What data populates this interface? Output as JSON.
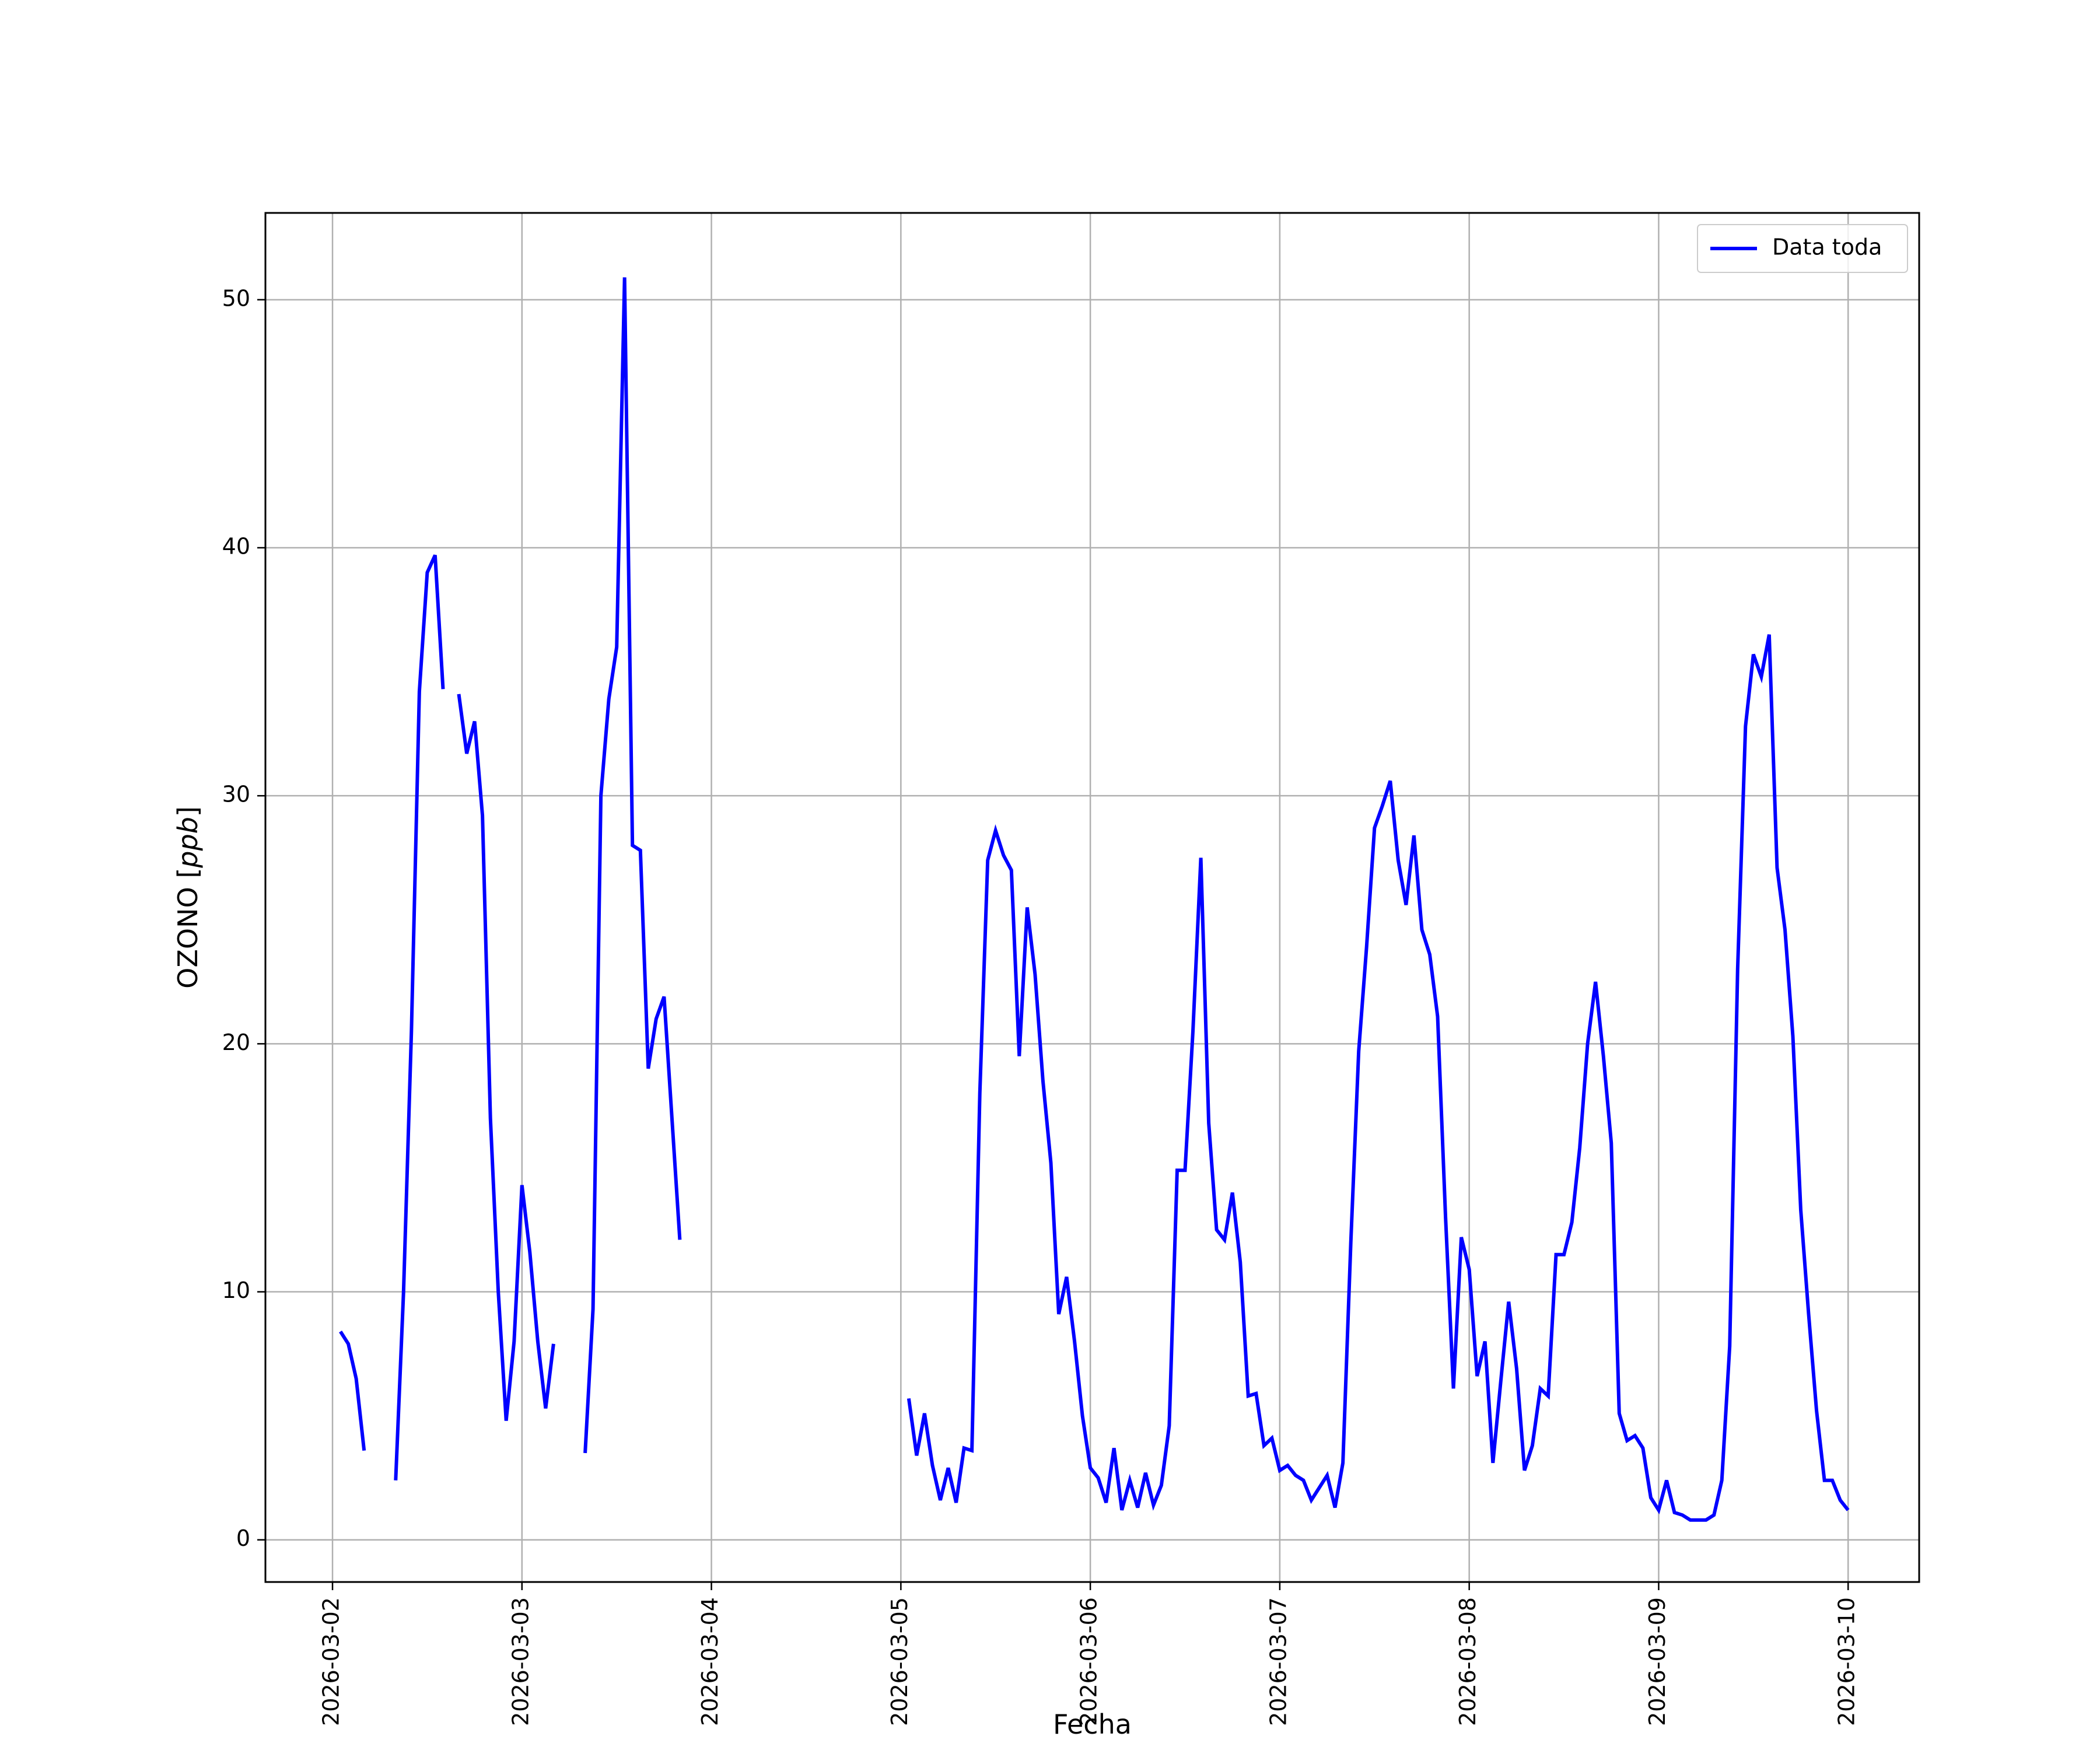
{
  "chart_data": {
    "type": "line",
    "xlabel": "Fecha",
    "ylabel": "OZONO [ppb]",
    "ylabel_parts": {
      "prefix": "OZONO [",
      "unit": "ppb",
      "suffix": "]"
    },
    "xlim": [
      "2026-03-01 15:30",
      "2026-03-10 09:00"
    ],
    "ylim": [
      -1.7,
      53.5
    ],
    "x_ticks": [
      "2026-03-02",
      "2026-03-03",
      "2026-03-04",
      "2026-03-05",
      "2026-03-06",
      "2026-03-07",
      "2026-03-08",
      "2026-03-09",
      "2026-03-10"
    ],
    "y_ticks": [
      0,
      10,
      20,
      30,
      40,
      50
    ],
    "grid": true,
    "legend": {
      "position": "top-right",
      "entries": [
        "Data toda"
      ]
    },
    "colors": {
      "series": "#0000ff",
      "grid": "#b0b0b0",
      "frame": "#000000"
    },
    "series": [
      {
        "name": "Data toda",
        "segments": [
          [
            [
              "2026-03-02 01:00",
              8.4
            ],
            [
              "2026-03-02 02:00",
              7.9
            ],
            [
              "2026-03-02 03:00",
              6.5
            ],
            [
              "2026-03-02 04:00",
              3.6
            ]
          ],
          [
            [
              "2026-03-02 08:00",
              2.4
            ],
            [
              "2026-03-02 09:00",
              10.0
            ],
            [
              "2026-03-02 10:00",
              20.5
            ],
            [
              "2026-03-02 11:00",
              34.2
            ],
            [
              "2026-03-02 12:00",
              39.0
            ],
            [
              "2026-03-02 13:00",
              39.7
            ],
            [
              "2026-03-02 14:00",
              34.3
            ]
          ],
          [
            [
              "2026-03-02 16:00",
              34.1
            ],
            [
              "2026-03-02 17:00",
              31.7
            ],
            [
              "2026-03-02 18:00",
              33.0
            ],
            [
              "2026-03-02 19:00",
              29.2
            ],
            [
              "2026-03-02 20:00",
              17.0
            ],
            [
              "2026-03-02 21:00",
              10.0
            ],
            [
              "2026-03-02 22:00",
              4.8
            ],
            [
              "2026-03-02 23:00",
              8.0
            ],
            [
              "2026-03-03 00:00",
              14.3
            ],
            [
              "2026-03-03 01:00",
              11.6
            ],
            [
              "2026-03-03 02:00",
              8.0
            ],
            [
              "2026-03-03 03:00",
              5.3
            ],
            [
              "2026-03-03 04:00",
              7.9
            ]
          ],
          [
            [
              "2026-03-03 08:00",
              3.5
            ],
            [
              "2026-03-03 09:00",
              9.3
            ],
            [
              "2026-03-03 10:00",
              30.0
            ],
            [
              "2026-03-03 11:00",
              33.9
            ],
            [
              "2026-03-03 12:00",
              36.0
            ],
            [
              "2026-03-03 13:00",
              50.9
            ],
            [
              "2026-03-03 14:00",
              28.0
            ],
            [
              "2026-03-03 15:00",
              27.8
            ],
            [
              "2026-03-03 16:00",
              19.0
            ],
            [
              "2026-03-03 17:00",
              21.0
            ],
            [
              "2026-03-03 18:00",
              21.9
            ],
            [
              "2026-03-03 19:00",
              17.0
            ],
            [
              "2026-03-03 20:00",
              12.1
            ]
          ],
          [
            [
              "2026-03-05 01:00",
              5.7
            ],
            [
              "2026-03-05 02:00",
              3.4
            ],
            [
              "2026-03-05 03:00",
              5.1
            ],
            [
              "2026-03-05 04:00",
              3.0
            ],
            [
              "2026-03-05 05:00",
              1.6
            ],
            [
              "2026-03-05 06:00",
              2.9
            ],
            [
              "2026-03-05 07:00",
              1.5
            ],
            [
              "2026-03-05 08:00",
              3.7
            ],
            [
              "2026-03-05 09:00",
              3.6
            ],
            [
              "2026-03-05 10:00",
              18.0
            ],
            [
              "2026-03-05 11:00",
              27.4
            ],
            [
              "2026-03-05 12:00",
              28.6
            ],
            [
              "2026-03-05 13:00",
              27.6
            ],
            [
              "2026-03-05 14:00",
              27.0
            ],
            [
              "2026-03-05 15:00",
              19.5
            ],
            [
              "2026-03-05 16:00",
              25.5
            ],
            [
              "2026-03-05 17:00",
              22.8
            ],
            [
              "2026-03-05 18:00",
              18.5
            ],
            [
              "2026-03-05 19:00",
              15.2
            ],
            [
              "2026-03-05 20:00",
              9.1
            ],
            [
              "2026-03-05 21:00",
              10.6
            ],
            [
              "2026-03-05 22:00",
              8.0
            ],
            [
              "2026-03-05 23:00",
              5.0
            ],
            [
              "2026-03-06 00:00",
              2.9
            ],
            [
              "2026-03-06 01:00",
              2.5
            ],
            [
              "2026-03-06 02:00",
              1.5
            ],
            [
              "2026-03-06 03:00",
              3.7
            ],
            [
              "2026-03-06 04:00",
              1.2
            ],
            [
              "2026-03-06 05:00",
              2.4
            ],
            [
              "2026-03-06 06:00",
              1.3
            ],
            [
              "2026-03-06 07:00",
              2.7
            ],
            [
              "2026-03-06 08:00",
              1.4
            ],
            [
              "2026-03-06 09:00",
              2.2
            ],
            [
              "2026-03-06 10:00",
              4.6
            ],
            [
              "2026-03-06 11:00",
              14.9
            ],
            [
              "2026-03-06 12:00",
              14.9
            ],
            [
              "2026-03-06 13:00",
              20.5
            ],
            [
              "2026-03-06 14:00",
              27.5
            ],
            [
              "2026-03-06 15:00",
              16.8
            ],
            [
              "2026-03-06 16:00",
              12.5
            ],
            [
              "2026-03-06 17:00",
              12.1
            ],
            [
              "2026-03-06 18:00",
              14.0
            ],
            [
              "2026-03-06 19:00",
              11.2
            ],
            [
              "2026-03-06 20:00",
              5.8
            ],
            [
              "2026-03-06 21:00",
              5.9
            ],
            [
              "2026-03-06 22:00",
              3.8
            ],
            [
              "2026-03-06 23:00",
              4.1
            ],
            [
              "2026-03-07 00:00",
              2.8
            ],
            [
              "2026-03-07 01:00",
              3.0
            ],
            [
              "2026-03-07 02:00",
              2.6
            ],
            [
              "2026-03-07 03:00",
              2.4
            ],
            [
              "2026-03-07 04:00",
              1.6
            ],
            [
              "2026-03-07 05:00",
              2.1
            ],
            [
              "2026-03-07 06:00",
              2.6
            ],
            [
              "2026-03-07 07:00",
              1.3
            ],
            [
              "2026-03-07 08:00",
              3.1
            ],
            [
              "2026-03-07 09:00",
              12.0
            ],
            [
              "2026-03-07 10:00",
              19.7
            ],
            [
              "2026-03-07 11:00",
              23.9
            ],
            [
              "2026-03-07 12:00",
              28.7
            ],
            [
              "2026-03-07 13:00",
              29.6
            ],
            [
              "2026-03-07 14:00",
              30.6
            ],
            [
              "2026-03-07 15:00",
              27.4
            ],
            [
              "2026-03-07 16:00",
              25.6
            ],
            [
              "2026-03-07 17:00",
              28.4
            ],
            [
              "2026-03-07 18:00",
              24.6
            ],
            [
              "2026-03-07 19:00",
              23.6
            ],
            [
              "2026-03-07 20:00",
              21.1
            ],
            [
              "2026-03-07 21:00",
              13.0
            ],
            [
              "2026-03-07 22:00",
              6.1
            ],
            [
              "2026-03-07 23:00",
              12.2
            ],
            [
              "2026-03-08 00:00",
              10.9
            ],
            [
              "2026-03-08 01:00",
              6.6
            ],
            [
              "2026-03-08 02:00",
              8.0
            ],
            [
              "2026-03-08 03:00",
              3.1
            ],
            [
              "2026-03-08 04:00",
              6.4
            ],
            [
              "2026-03-08 05:00",
              9.6
            ],
            [
              "2026-03-08 06:00",
              6.9
            ],
            [
              "2026-03-08 07:00",
              2.8
            ],
            [
              "2026-03-08 08:00",
              3.8
            ],
            [
              "2026-03-08 09:00",
              6.1
            ],
            [
              "2026-03-08 10:00",
              5.8
            ],
            [
              "2026-03-08 11:00",
              11.5
            ],
            [
              "2026-03-08 12:00",
              11.5
            ],
            [
              "2026-03-08 13:00",
              12.8
            ],
            [
              "2026-03-08 14:00",
              15.8
            ],
            [
              "2026-03-08 15:00",
              20.0
            ],
            [
              "2026-03-08 16:00",
              22.5
            ],
            [
              "2026-03-08 17:00",
              19.5
            ],
            [
              "2026-03-08 18:00",
              16.0
            ],
            [
              "2026-03-08 19:00",
              5.1
            ],
            [
              "2026-03-08 20:00",
              4.0
            ],
            [
              "2026-03-08 21:00",
              4.2
            ],
            [
              "2026-03-08 22:00",
              3.7
            ],
            [
              "2026-03-08 23:00",
              1.7
            ],
            [
              "2026-03-09 00:00",
              1.2
            ],
            [
              "2026-03-09 01:00",
              2.4
            ],
            [
              "2026-03-09 02:00",
              1.1
            ],
            [
              "2026-03-09 03:00",
              1.0
            ],
            [
              "2026-03-09 04:00",
              0.8
            ],
            [
              "2026-03-09 05:00",
              0.8
            ],
            [
              "2026-03-09 06:00",
              0.8
            ],
            [
              "2026-03-09 07:00",
              1.0
            ],
            [
              "2026-03-09 08:00",
              2.4
            ],
            [
              "2026-03-09 09:00",
              7.8
            ],
            [
              "2026-03-09 10:00",
              23.0
            ],
            [
              "2026-03-09 11:00",
              32.8
            ],
            [
              "2026-03-09 12:00",
              35.7
            ],
            [
              "2026-03-09 13:00",
              34.8
            ],
            [
              "2026-03-09 14:00",
              36.5
            ],
            [
              "2026-03-09 15:00",
              27.1
            ],
            [
              "2026-03-09 16:00",
              24.6
            ],
            [
              "2026-03-09 17:00",
              20.3
            ],
            [
              "2026-03-09 18:00",
              13.3
            ],
            [
              "2026-03-09 19:00",
              9.1
            ],
            [
              "2026-03-09 20:00",
              5.2
            ],
            [
              "2026-03-09 21:00",
              2.4
            ],
            [
              "2026-03-09 22:00",
              2.4
            ],
            [
              "2026-03-09 23:00",
              1.6
            ],
            [
              "2026-03-10 00:00",
              1.2
            ]
          ]
        ]
      }
    ]
  }
}
